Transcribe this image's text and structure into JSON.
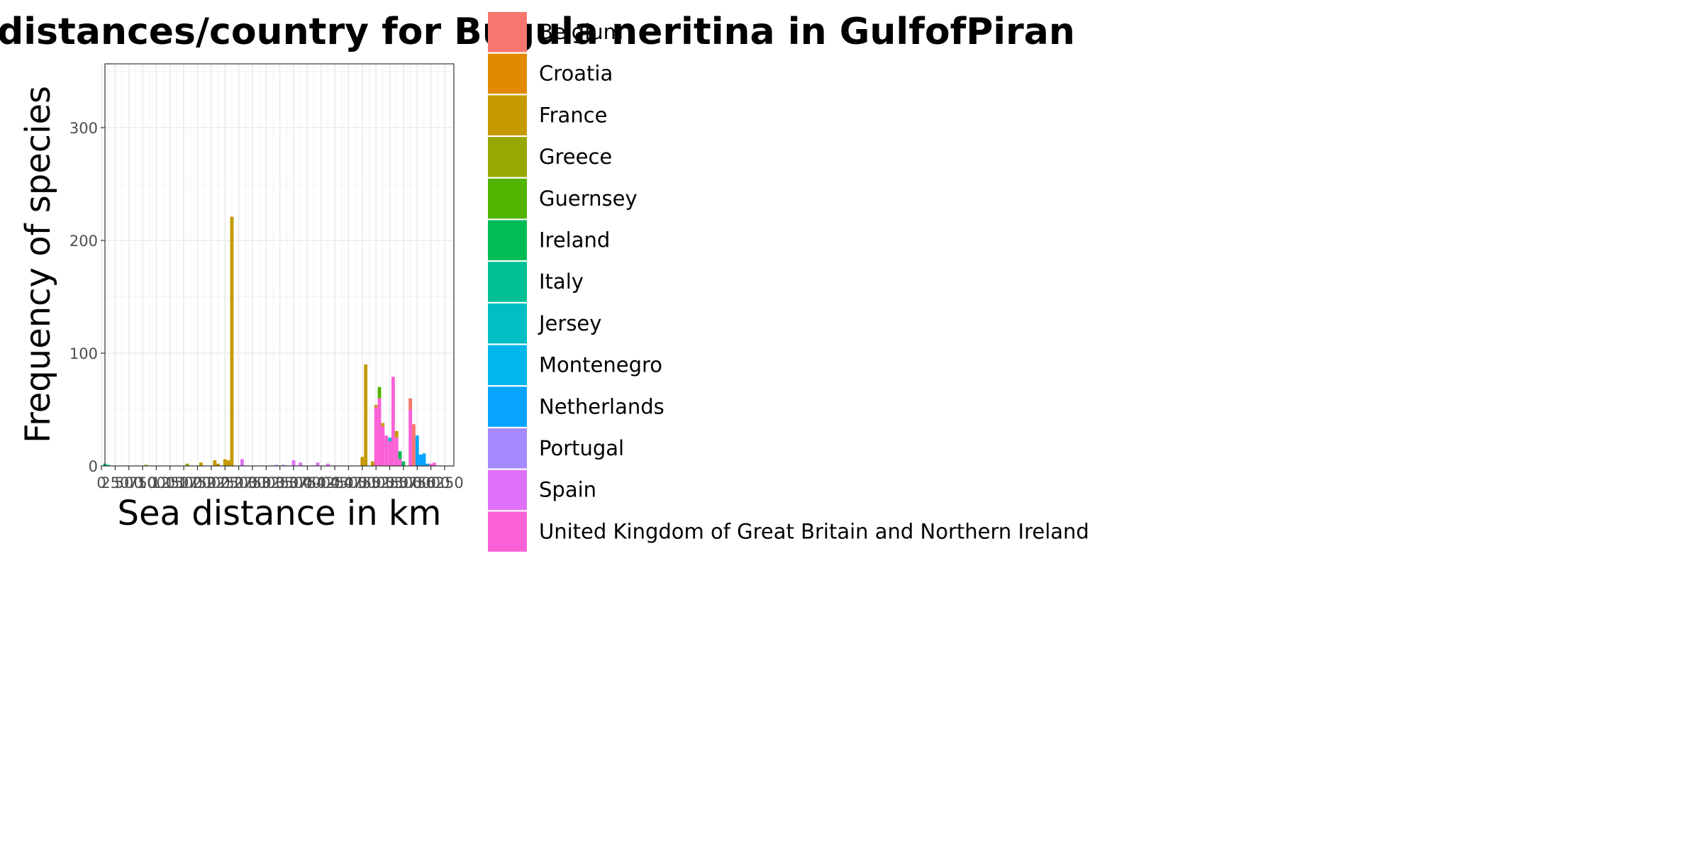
{
  "chart_data": {
    "type": "bar",
    "stacked": true,
    "title": "distances/country for Bugula neritina in GulfofPiran",
    "xlabel": "Sea distance in km",
    "ylabel": "Frequency of species",
    "xlim": [
      0,
      6250
    ],
    "ylim": [
      0,
      355
    ],
    "grid": true,
    "legend_position": "right",
    "bin_width": 62.5,
    "x_ticks": [
      0,
      250,
      500,
      750,
      1000,
      1250,
      1500,
      1750,
      2000,
      2250,
      2500,
      2750,
      3000,
      3250,
      3500,
      3750,
      4000,
      4250,
      4500,
      4750,
      5000,
      5250,
      5500,
      5750,
      6000,
      6250
    ],
    "x_tick_labels": [
      "0",
      "250",
      "500",
      "750",
      "1000",
      "1250",
      "1500",
      "1750",
      "2000",
      "2250",
      "2500",
      "2750",
      "3000",
      "3250",
      "3500",
      "3750",
      "4000",
      "4250",
      "4500",
      "4750",
      "5000",
      "5250",
      "5500",
      "5750",
      "6000",
      "6250"
    ],
    "y_ticks": [
      0,
      100,
      200,
      300
    ],
    "y_tick_labels": [
      "0",
      "100",
      "200",
      "300"
    ],
    "legend": [
      {
        "name": "Belgium",
        "color": "#F8766D"
      },
      {
        "name": "Croatia",
        "color": "#E38900"
      },
      {
        "name": "France",
        "color": "#C49A00"
      },
      {
        "name": "Greece",
        "color": "#99A800"
      },
      {
        "name": "Guernsey",
        "color": "#53B400"
      },
      {
        "name": "Ireland",
        "color": "#00BC56"
      },
      {
        "name": "Italy",
        "color": "#00C094"
      },
      {
        "name": "Jersey",
        "color": "#00BFC4"
      },
      {
        "name": "Montenegro",
        "color": "#00B6EB"
      },
      {
        "name": "Netherlands",
        "color": "#06A4FF"
      },
      {
        "name": "Portugal",
        "color": "#A58AFF"
      },
      {
        "name": "Spain",
        "color": "#DF70F8"
      },
      {
        "name": "United Kingdom of Great Britain and Northern Ireland",
        "color": "#FB61D7"
      }
    ],
    "bars": [
      {
        "x": 62.5,
        "stack": [
          {
            "series": "Italy",
            "value": 2
          }
        ]
      },
      {
        "x": 125,
        "stack": [
          {
            "series": "Italy",
            "value": 1
          }
        ]
      },
      {
        "x": 812.5,
        "stack": [
          {
            "series": "Greece",
            "value": 1
          }
        ]
      },
      {
        "x": 1562.5,
        "stack": [
          {
            "series": "Greece",
            "value": 2
          }
        ]
      },
      {
        "x": 1812.5,
        "stack": [
          {
            "series": "France",
            "value": 3
          }
        ]
      },
      {
        "x": 2062.5,
        "stack": [
          {
            "series": "France",
            "value": 5
          }
        ]
      },
      {
        "x": 2125,
        "stack": [
          {
            "series": "France",
            "value": 2
          }
        ]
      },
      {
        "x": 2250,
        "stack": [
          {
            "series": "France",
            "value": 6
          }
        ]
      },
      {
        "x": 2312.5,
        "stack": [
          {
            "series": "France",
            "value": 5
          }
        ]
      },
      {
        "x": 2375,
        "stack": [
          {
            "series": "France",
            "value": 221
          }
        ]
      },
      {
        "x": 2562.5,
        "stack": [
          {
            "series": "Spain",
            "value": 6
          }
        ]
      },
      {
        "x": 3187.5,
        "stack": [
          {
            "series": "Portugal",
            "value": 1
          }
        ]
      },
      {
        "x": 3312.5,
        "stack": [
          {
            "series": "Portugal",
            "value": 1
          }
        ]
      },
      {
        "x": 3500,
        "stack": [
          {
            "series": "Spain",
            "value": 5
          }
        ]
      },
      {
        "x": 3625,
        "stack": [
          {
            "series": "Spain",
            "value": 3
          }
        ]
      },
      {
        "x": 3937.5,
        "stack": [
          {
            "series": "Spain",
            "value": 3
          }
        ]
      },
      {
        "x": 4125,
        "stack": [
          {
            "series": "Spain",
            "value": 2
          }
        ]
      },
      {
        "x": 4750,
        "stack": [
          {
            "series": "France",
            "value": 8
          }
        ]
      },
      {
        "x": 4812.5,
        "stack": [
          {
            "series": "France",
            "value": 90
          }
        ]
      },
      {
        "x": 4937.5,
        "stack": [
          {
            "series": "France",
            "value": 4
          }
        ]
      },
      {
        "x": 5000,
        "stack": [
          {
            "series": "United Kingdom of Great Britain and Northern Ireland",
            "value": 52
          },
          {
            "series": "France",
            "value": 2
          }
        ]
      },
      {
        "x": 5062.5,
        "stack": [
          {
            "series": "United Kingdom of Great Britain and Northern Ireland",
            "value": 60
          },
          {
            "series": "Guernsey",
            "value": 10
          }
        ]
      },
      {
        "x": 5125,
        "stack": [
          {
            "series": "United Kingdom of Great Britain and Northern Ireland",
            "value": 35
          },
          {
            "series": "France",
            "value": 3
          }
        ]
      },
      {
        "x": 5187.5,
        "stack": [
          {
            "series": "United Kingdom of Great Britain and Northern Ireland",
            "value": 27
          }
        ]
      },
      {
        "x": 5250,
        "stack": [
          {
            "series": "United Kingdom of Great Britain and Northern Ireland",
            "value": 22
          },
          {
            "series": "Jersey",
            "value": 3
          }
        ]
      },
      {
        "x": 5312.5,
        "stack": [
          {
            "series": "United Kingdom of Great Britain and Northern Ireland",
            "value": 79
          }
        ]
      },
      {
        "x": 5375,
        "stack": [
          {
            "series": "United Kingdom of Great Britain and Northern Ireland",
            "value": 25
          },
          {
            "series": "France",
            "value": 6
          }
        ]
      },
      {
        "x": 5437.5,
        "stack": [
          {
            "series": "United Kingdom of Great Britain and Northern Ireland",
            "value": 6
          },
          {
            "series": "Ireland",
            "value": 7
          }
        ]
      },
      {
        "x": 5500,
        "stack": [
          {
            "series": "Ireland",
            "value": 4
          }
        ]
      },
      {
        "x": 5625,
        "stack": [
          {
            "series": "United Kingdom of Great Britain and Northern Ireland",
            "value": 50
          },
          {
            "series": "Belgium",
            "value": 10
          }
        ]
      },
      {
        "x": 5687.5,
        "stack": [
          {
            "series": "Belgium",
            "value": 37
          }
        ]
      },
      {
        "x": 5750,
        "stack": [
          {
            "series": "Netherlands",
            "value": 27
          }
        ]
      },
      {
        "x": 5812.5,
        "stack": [
          {
            "series": "Netherlands",
            "value": 10
          }
        ]
      },
      {
        "x": 5875,
        "stack": [
          {
            "series": "Netherlands",
            "value": 11
          }
        ]
      },
      {
        "x": 5937.5,
        "stack": [
          {
            "series": "Netherlands",
            "value": 2
          }
        ]
      },
      {
        "x": 6000,
        "stack": [
          {
            "series": "United Kingdom of Great Britain and Northern Ireland",
            "value": 2
          }
        ]
      },
      {
        "x": 6062.5,
        "stack": [
          {
            "series": "United Kingdom of Great Britain and Northern Ireland",
            "value": 3
          }
        ]
      }
    ]
  }
}
